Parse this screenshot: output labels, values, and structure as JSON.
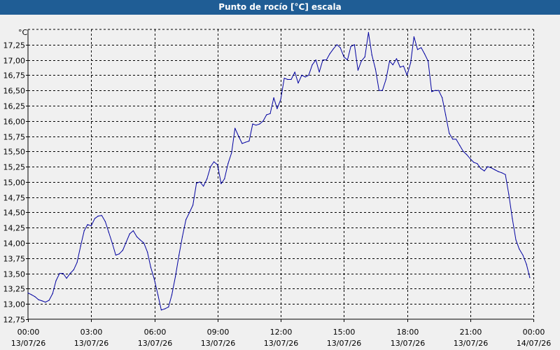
{
  "window": {
    "title": "Punto de rocío [°C] escala"
  },
  "chart_data": {
    "type": "line",
    "title": "Punto de rocío [°C] escala",
    "ylabel": "°C",
    "xlabel": "",
    "ylim": [
      12.75,
      17.5
    ],
    "xlim": [
      0,
      24
    ],
    "grid": true,
    "y_ticks": [
      "12,75",
      "13,00",
      "13,25",
      "13,50",
      "13,75",
      "14,00",
      "14,25",
      "14,50",
      "14,75",
      "15,00",
      "15,25",
      "15,50",
      "15,75",
      "16,00",
      "16,25",
      "16,50",
      "16,75",
      "17,00",
      "17,25"
    ],
    "y_tick_values": [
      12.75,
      13.0,
      13.25,
      13.5,
      13.75,
      14.0,
      14.25,
      14.5,
      14.75,
      15.0,
      15.25,
      15.5,
      15.75,
      16.0,
      16.25,
      16.5,
      16.75,
      17.0,
      17.25
    ],
    "x_ticks": [
      {
        "hours": 0,
        "time": "00:00",
        "date": "13/07/26"
      },
      {
        "hours": 3,
        "time": "03:00",
        "date": "13/07/26"
      },
      {
        "hours": 6,
        "time": "06:00",
        "date": "13/07/26"
      },
      {
        "hours": 9,
        "time": "09:00",
        "date": "13/07/26"
      },
      {
        "hours": 12,
        "time": "12:00",
        "date": "13/07/26"
      },
      {
        "hours": 15,
        "time": "15:00",
        "date": "13/07/26"
      },
      {
        "hours": 18,
        "time": "18:00",
        "date": "13/07/26"
      },
      {
        "hours": 21,
        "time": "21:00",
        "date": "13/07/26"
      },
      {
        "hours": 24,
        "time": "00:00",
        "date": "14/07/26"
      }
    ],
    "series": [
      {
        "color": "#0000a0",
        "x": [
          0,
          0.17,
          0.33,
          0.5,
          0.67,
          0.83,
          1.0,
          1.17,
          1.33,
          1.5,
          1.67,
          1.83,
          2.0,
          2.17,
          2.33,
          2.5,
          2.67,
          2.83,
          3.0,
          3.17,
          3.33,
          3.5,
          3.67,
          3.83,
          4.0,
          4.17,
          4.33,
          4.5,
          4.67,
          4.83,
          5.0,
          5.17,
          5.33,
          5.5,
          5.67,
          5.83,
          6.0,
          6.17,
          6.33,
          6.5,
          6.67,
          6.83,
          7.0,
          7.17,
          7.33,
          7.5,
          7.67,
          7.83,
          8.0,
          8.17,
          8.33,
          8.5,
          8.67,
          8.83,
          9.0,
          9.17,
          9.33,
          9.5,
          9.67,
          9.83,
          10.0,
          10.17,
          10.33,
          10.5,
          10.67,
          10.83,
          11.0,
          11.17,
          11.33,
          11.5,
          11.67,
          11.83,
          12.0,
          12.17,
          12.33,
          12.5,
          12.67,
          12.83,
          13.0,
          13.17,
          13.33,
          13.5,
          13.67,
          13.83,
          14.0,
          14.17,
          14.33,
          14.5,
          14.67,
          14.83,
          15.0,
          15.17,
          15.33,
          15.5,
          15.67,
          15.83,
          16.0,
          16.17,
          16.33,
          16.5,
          16.67,
          16.83,
          17.0,
          17.17,
          17.33,
          17.5,
          17.67,
          17.83,
          18.0,
          18.17,
          18.33,
          18.5,
          18.67,
          18.83,
          19.0,
          19.17,
          19.33,
          19.5,
          19.67,
          19.83,
          20.0,
          20.17,
          20.33,
          20.5,
          20.67,
          20.83,
          21.0,
          21.17,
          21.33,
          21.5,
          21.67,
          21.83,
          22.0,
          22.17,
          22.33,
          22.5,
          22.67,
          22.83,
          23.0,
          23.17,
          23.33,
          23.5,
          23.67,
          23.83
        ],
        "y": [
          13.18,
          13.15,
          13.12,
          13.07,
          13.05,
          13.03,
          13.06,
          13.17,
          13.38,
          13.5,
          13.5,
          13.42,
          13.5,
          13.56,
          13.68,
          13.95,
          14.2,
          14.3,
          14.28,
          14.4,
          14.44,
          14.45,
          14.35,
          14.18,
          14.0,
          13.8,
          13.82,
          13.88,
          14.02,
          14.15,
          14.2,
          14.1,
          14.05,
          14.0,
          13.85,
          13.6,
          13.4,
          13.15,
          12.9,
          12.92,
          12.95,
          13.15,
          13.45,
          13.8,
          14.1,
          14.38,
          14.5,
          14.62,
          14.98,
          15.0,
          14.93,
          15.05,
          15.25,
          15.33,
          15.28,
          14.97,
          15.05,
          15.3,
          15.48,
          15.88,
          15.75,
          15.63,
          15.65,
          15.67,
          15.95,
          15.93,
          15.95,
          16.0,
          16.1,
          16.12,
          16.38,
          16.2,
          16.35,
          16.7,
          16.68,
          16.68,
          16.8,
          16.62,
          16.75,
          16.72,
          16.75,
          16.92,
          17.0,
          16.8,
          17.0,
          17.0,
          17.1,
          17.18,
          17.25,
          17.2,
          17.05,
          17.0,
          17.22,
          17.25,
          16.83,
          16.98,
          17.05,
          17.45,
          17.08,
          16.85,
          16.5,
          16.5,
          16.68,
          16.98,
          16.92,
          17.02,
          16.88,
          16.9,
          16.75,
          16.95,
          17.38,
          17.17,
          17.2,
          17.1,
          16.98,
          16.48,
          16.5,
          16.5,
          16.38,
          16.1,
          15.8,
          15.7,
          15.7,
          15.6,
          15.5,
          15.45,
          15.38,
          15.32,
          15.3,
          15.22,
          15.18,
          15.25,
          15.23,
          15.2,
          15.17,
          15.15,
          15.12,
          14.8,
          14.4,
          14.05,
          13.9,
          13.8,
          13.65,
          13.43
        ]
      }
    ]
  }
}
